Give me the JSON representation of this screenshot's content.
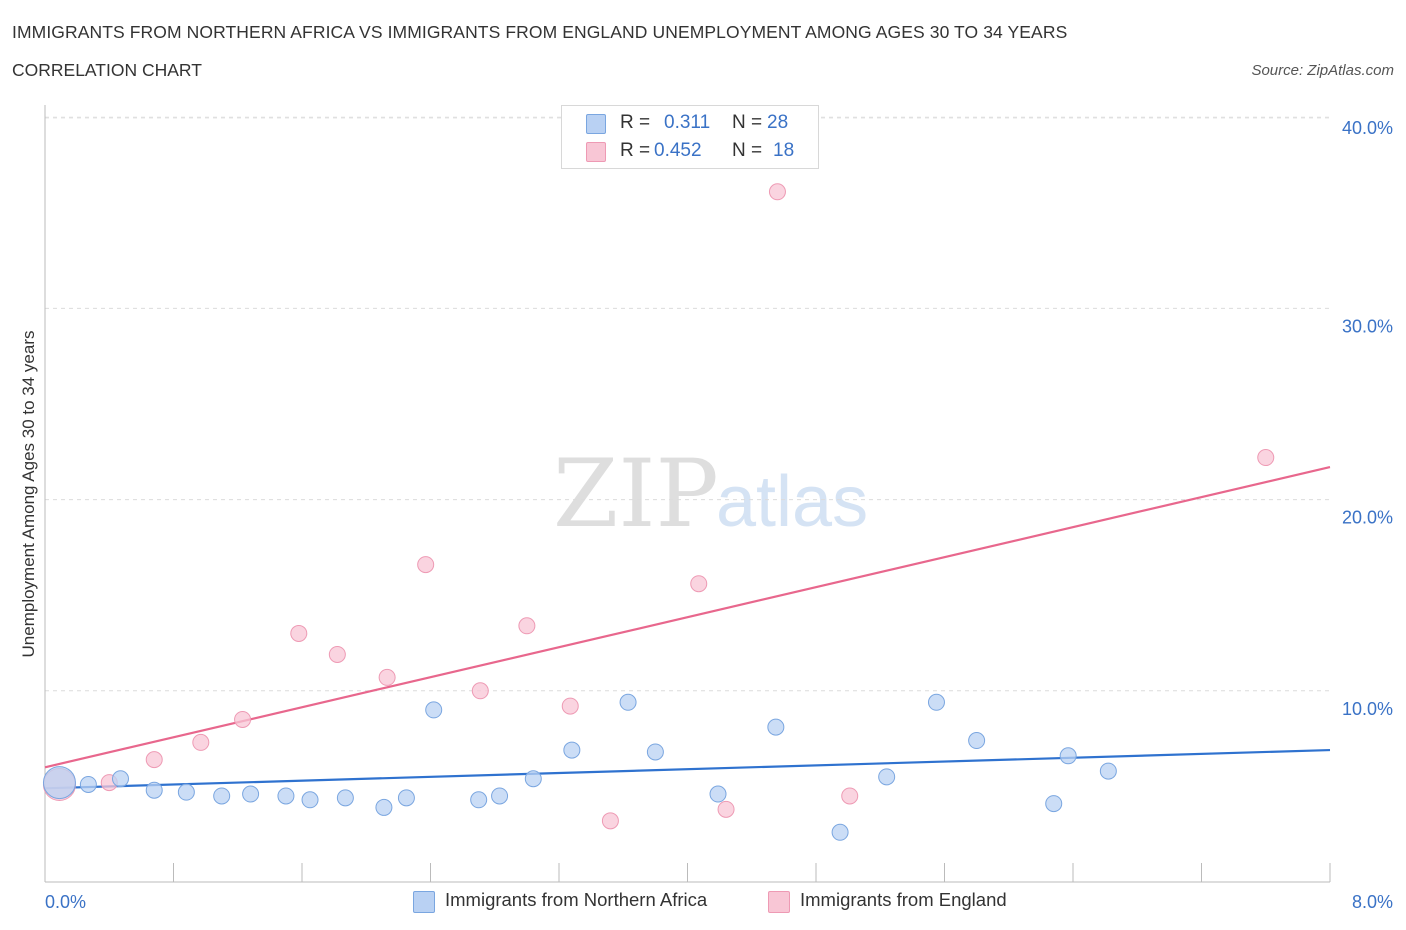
{
  "header": {
    "title": "IMMIGRANTS FROM NORTHERN AFRICA VS IMMIGRANTS FROM ENGLAND UNEMPLOYMENT AMONG AGES 30 TO 34 YEARS",
    "subtitle": "CORRELATION CHART",
    "source": "Source: ZipAtlas.com"
  },
  "watermark": {
    "zip": "ZIP",
    "atlas": "atlas"
  },
  "legend_box": {
    "r_label": "R =",
    "n_label": "N =",
    "rows": [
      {
        "r": "0.311",
        "n": "28"
      },
      {
        "r": "0.452",
        "n": "18"
      }
    ]
  },
  "colors": {
    "blue_fill": "#b9d1f3",
    "blue_stroke": "#7aa6e0",
    "blue_line": "#2f72cf",
    "pink_fill": "#f8c6d5",
    "pink_stroke": "#ee9ab4",
    "pink_line": "#e8678d",
    "axis_label": "#3a72c6"
  },
  "chart_data": {
    "type": "scatter",
    "title": "IMMIGRANTS FROM NORTHERN AFRICA VS IMMIGRANTS FROM ENGLAND UNEMPLOYMENT AMONG AGES 30 TO 34 YEARS",
    "xlabel": "",
    "ylabel": "Unemployment Among Ages 30 to 34 years",
    "xlim": [
      0,
      8
    ],
    "ylim": [
      0,
      40
    ],
    "x_tick_labels": [
      "0.0%",
      "8.0%"
    ],
    "y_ticks": [
      10,
      20,
      30,
      40
    ],
    "y_tick_labels": [
      "10.0%",
      "20.0%",
      "30.0%",
      "40.0%"
    ],
    "grid": true,
    "legend_position": "bottom-center",
    "series": [
      {
        "name": "Immigrants from Northern Africa",
        "color": "blue",
        "r": 0.311,
        "n": 28,
        "trend": {
          "x": [
            0,
            8
          ],
          "y": [
            4.9,
            6.9
          ]
        },
        "points": [
          {
            "x": 0.09,
            "y": 5.2,
            "big": true
          },
          {
            "x": 0.27,
            "y": 5.1
          },
          {
            "x": 0.47,
            "y": 5.4
          },
          {
            "x": 0.68,
            "y": 4.8
          },
          {
            "x": 0.88,
            "y": 4.7
          },
          {
            "x": 1.1,
            "y": 4.5
          },
          {
            "x": 1.28,
            "y": 4.6
          },
          {
            "x": 1.5,
            "y": 4.5
          },
          {
            "x": 1.65,
            "y": 4.3
          },
          {
            "x": 1.87,
            "y": 4.4
          },
          {
            "x": 2.11,
            "y": 3.9
          },
          {
            "x": 2.25,
            "y": 4.4
          },
          {
            "x": 2.42,
            "y": 9.0
          },
          {
            "x": 2.7,
            "y": 4.3
          },
          {
            "x": 2.83,
            "y": 4.5
          },
          {
            "x": 3.04,
            "y": 5.4
          },
          {
            "x": 3.28,
            "y": 6.9
          },
          {
            "x": 3.63,
            "y": 9.4
          },
          {
            "x": 3.8,
            "y": 6.8
          },
          {
            "x": 4.19,
            "y": 4.6
          },
          {
            "x": 4.55,
            "y": 8.1
          },
          {
            "x": 4.95,
            "y": 2.6
          },
          {
            "x": 5.24,
            "y": 5.5
          },
          {
            "x": 5.55,
            "y": 9.4
          },
          {
            "x": 5.8,
            "y": 7.4
          },
          {
            "x": 6.28,
            "y": 4.1
          },
          {
            "x": 6.37,
            "y": 6.6
          },
          {
            "x": 6.62,
            "y": 5.8
          }
        ]
      },
      {
        "name": "Immigrants from England",
        "color": "pink",
        "r": 0.452,
        "n": 18,
        "trend": {
          "x": [
            0,
            8
          ],
          "y": [
            6.0,
            21.7
          ]
        },
        "points": [
          {
            "x": 0.09,
            "y": 5.1,
            "big": true
          },
          {
            "x": 0.4,
            "y": 5.2
          },
          {
            "x": 0.68,
            "y": 6.4
          },
          {
            "x": 0.97,
            "y": 7.3
          },
          {
            "x": 1.23,
            "y": 8.5
          },
          {
            "x": 1.58,
            "y": 13.0
          },
          {
            "x": 1.82,
            "y": 11.9
          },
          {
            "x": 2.13,
            "y": 10.7
          },
          {
            "x": 2.37,
            "y": 16.6
          },
          {
            "x": 2.71,
            "y": 10.0
          },
          {
            "x": 3.0,
            "y": 13.4
          },
          {
            "x": 3.27,
            "y": 9.2
          },
          {
            "x": 3.52,
            "y": 3.2
          },
          {
            "x": 4.07,
            "y": 15.6
          },
          {
            "x": 4.24,
            "y": 3.8
          },
          {
            "x": 4.56,
            "y": 36.1
          },
          {
            "x": 5.01,
            "y": 4.5
          },
          {
            "x": 7.6,
            "y": 22.2
          }
        ]
      }
    ]
  }
}
